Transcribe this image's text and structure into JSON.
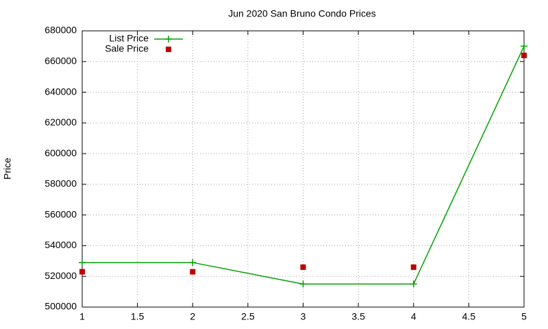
{
  "chart_data": {
    "type": "line",
    "title": "Jun 2020 San Bruno Condo Prices",
    "y_label": "Price",
    "x": [
      1,
      2,
      3,
      4,
      5
    ],
    "series": [
      {
        "name": "List Price",
        "color": "#00a000",
        "mode": "lines+points",
        "values": [
          529000,
          529000,
          515000,
          515000,
          670000
        ]
      },
      {
        "name": "Sale Price",
        "color": "#c00000",
        "mode": "points",
        "values": [
          523000,
          523000,
          526000,
          526000,
          664000
        ]
      }
    ],
    "xlim": [
      1,
      5
    ],
    "xticks": [
      1,
      1.5,
      2,
      2.5,
      3,
      3.5,
      4,
      4.5,
      5
    ],
    "ylim": [
      500000,
      680000
    ],
    "yticks": [
      500000,
      520000,
      540000,
      560000,
      580000,
      600000,
      620000,
      640000,
      660000,
      680000
    ],
    "grid": true,
    "legend": "top-left"
  }
}
